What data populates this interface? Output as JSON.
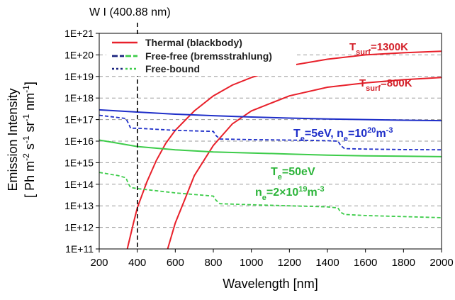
{
  "chart_data": {
    "type": "line",
    "annotation_top": "W I (400.88 nm)",
    "marker_line_x": 400.88,
    "xlabel": "Wavelength [nm]",
    "ylabel_line1": "Emission Intensity",
    "ylabel_line2_parts": [
      "[ Ph m",
      "-2",
      " s",
      "-1",
      " sr",
      "-1",
      " nm",
      "-1",
      "]"
    ],
    "xlim": [
      200,
      2000
    ],
    "ylim_log10": [
      11,
      21
    ],
    "y_scale": "log",
    "grid": "horizontal-dashed",
    "legend_position": "top-left",
    "x_ticks": [
      "200",
      "400",
      "600",
      "800",
      "1000",
      "1200",
      "1400",
      "1600",
      "1800",
      "2000"
    ],
    "x_tick_values": [
      200,
      400,
      600,
      800,
      1000,
      1200,
      1400,
      1600,
      1800,
      2000
    ],
    "y_ticks": [
      "1E+11",
      "1E+12",
      "1E+13",
      "1E+14",
      "1E+15",
      "1E+16",
      "1E+17",
      "1E+18",
      "1E+19",
      "1E+20",
      "1E+21"
    ],
    "y_tick_log10": [
      11,
      12,
      13,
      14,
      15,
      16,
      17,
      18,
      19,
      20,
      21
    ],
    "legend": [
      {
        "label": "Thermal (blackbody)",
        "color": "#e8202a",
        "style": "solid"
      },
      {
        "label": "Free-free (bremsstrahlung)",
        "colors": [
          "#1a237e",
          "#3dcc4a"
        ],
        "style": "dashed-split"
      },
      {
        "label": "Free-bound",
        "colors": [
          "#1a237e",
          "#3dcc4a"
        ],
        "style": "dotted-split"
      }
    ],
    "series": [
      {
        "color": "#e8202a",
        "style": "solid",
        "x": [
          330,
          350,
          380,
          400,
          450,
          500,
          550,
          600,
          700,
          800,
          900,
          1000,
          1200,
          1400,
          1600,
          1800,
          2000
        ],
        "y_log10": [
          10.3,
          11.1,
          12.2,
          12.9,
          14.1,
          15.1,
          15.9,
          16.5,
          17.4,
          18.1,
          18.6,
          18.95,
          19.5,
          19.8,
          20.0,
          20.1,
          20.17
        ]
      },
      {
        "color": "#e8202a",
        "style": "solid",
        "x": [
          550,
          600,
          650,
          700,
          800,
          900,
          1000,
          1200,
          1400,
          1600,
          1800,
          2000
        ],
        "y_log10": [
          10.7,
          12.2,
          13.3,
          14.4,
          15.8,
          16.8,
          17.4,
          18.1,
          18.5,
          18.7,
          18.85,
          18.95
        ]
      },
      {
        "color": "#1f2fc9",
        "style": "solid",
        "x": [
          200,
          400,
          600,
          800,
          1000,
          1200,
          1400,
          1600,
          1800,
          2000
        ],
        "y_log10": [
          17.45,
          17.35,
          17.25,
          17.18,
          17.12,
          17.07,
          17.03,
          17.0,
          16.97,
          16.95
        ]
      },
      {
        "color": "#1f2fc9",
        "style": "dashed",
        "x": [
          200,
          340,
          355,
          365,
          400,
          600,
          800,
          815,
          835,
          1000,
          1200,
          1400,
          1455,
          1470,
          1490,
          1600,
          1800,
          2000
        ],
        "y_log10": [
          17.2,
          17.05,
          16.8,
          16.6,
          16.6,
          16.5,
          16.45,
          16.25,
          16.1,
          16.07,
          16.05,
          16.02,
          16.0,
          15.8,
          15.65,
          15.63,
          15.61,
          15.6
        ]
      },
      {
        "color": "#3dcc4a",
        "style": "solid",
        "x": [
          200,
          300,
          400,
          600,
          800,
          1000,
          1200,
          1400,
          1600,
          1800,
          2000
        ],
        "y_log10": [
          16.05,
          15.9,
          15.75,
          15.6,
          15.5,
          15.45,
          15.4,
          15.35,
          15.32,
          15.3,
          15.28
        ]
      },
      {
        "color": "#3dcc4a",
        "style": "dashed",
        "x": [
          200,
          300,
          340,
          355,
          365,
          400,
          600,
          800,
          815,
          835,
          1000,
          1200,
          1400,
          1455,
          1470,
          1490,
          1600,
          1800,
          2000
        ],
        "y_log10": [
          14.55,
          14.4,
          14.3,
          14.0,
          13.85,
          13.8,
          13.6,
          13.45,
          13.25,
          13.1,
          13.05,
          13.0,
          12.95,
          12.9,
          12.7,
          12.6,
          12.55,
          12.5,
          12.45
        ]
      }
    ],
    "labels": {
      "t1300": {
        "prefix": "T",
        "sub": "surf",
        "suffix": "=1300K",
        "color": "#d32029"
      },
      "t800": {
        "prefix": "T",
        "sub": "surf",
        "suffix": "=800K",
        "color": "#d32029"
      },
      "te5_a": "T",
      "te5_sub": "e",
      "te5_b": "=5eV, n",
      "te5_sub2": "e",
      "te5_c": "=10",
      "te5_sup": "20",
      "te5_d": "m",
      "te5_sup2": "-3",
      "te5_color": "#1f2fc9",
      "te50_a": "T",
      "te50_sub": "e",
      "te50_b": "=50eV",
      "ne_a": "n",
      "ne_sub": "e",
      "ne_b": "=2×10",
      "ne_sup": "19",
      "ne_c": "m",
      "ne_sup2": "-3",
      "te50_color": "#2cb43a"
    }
  }
}
